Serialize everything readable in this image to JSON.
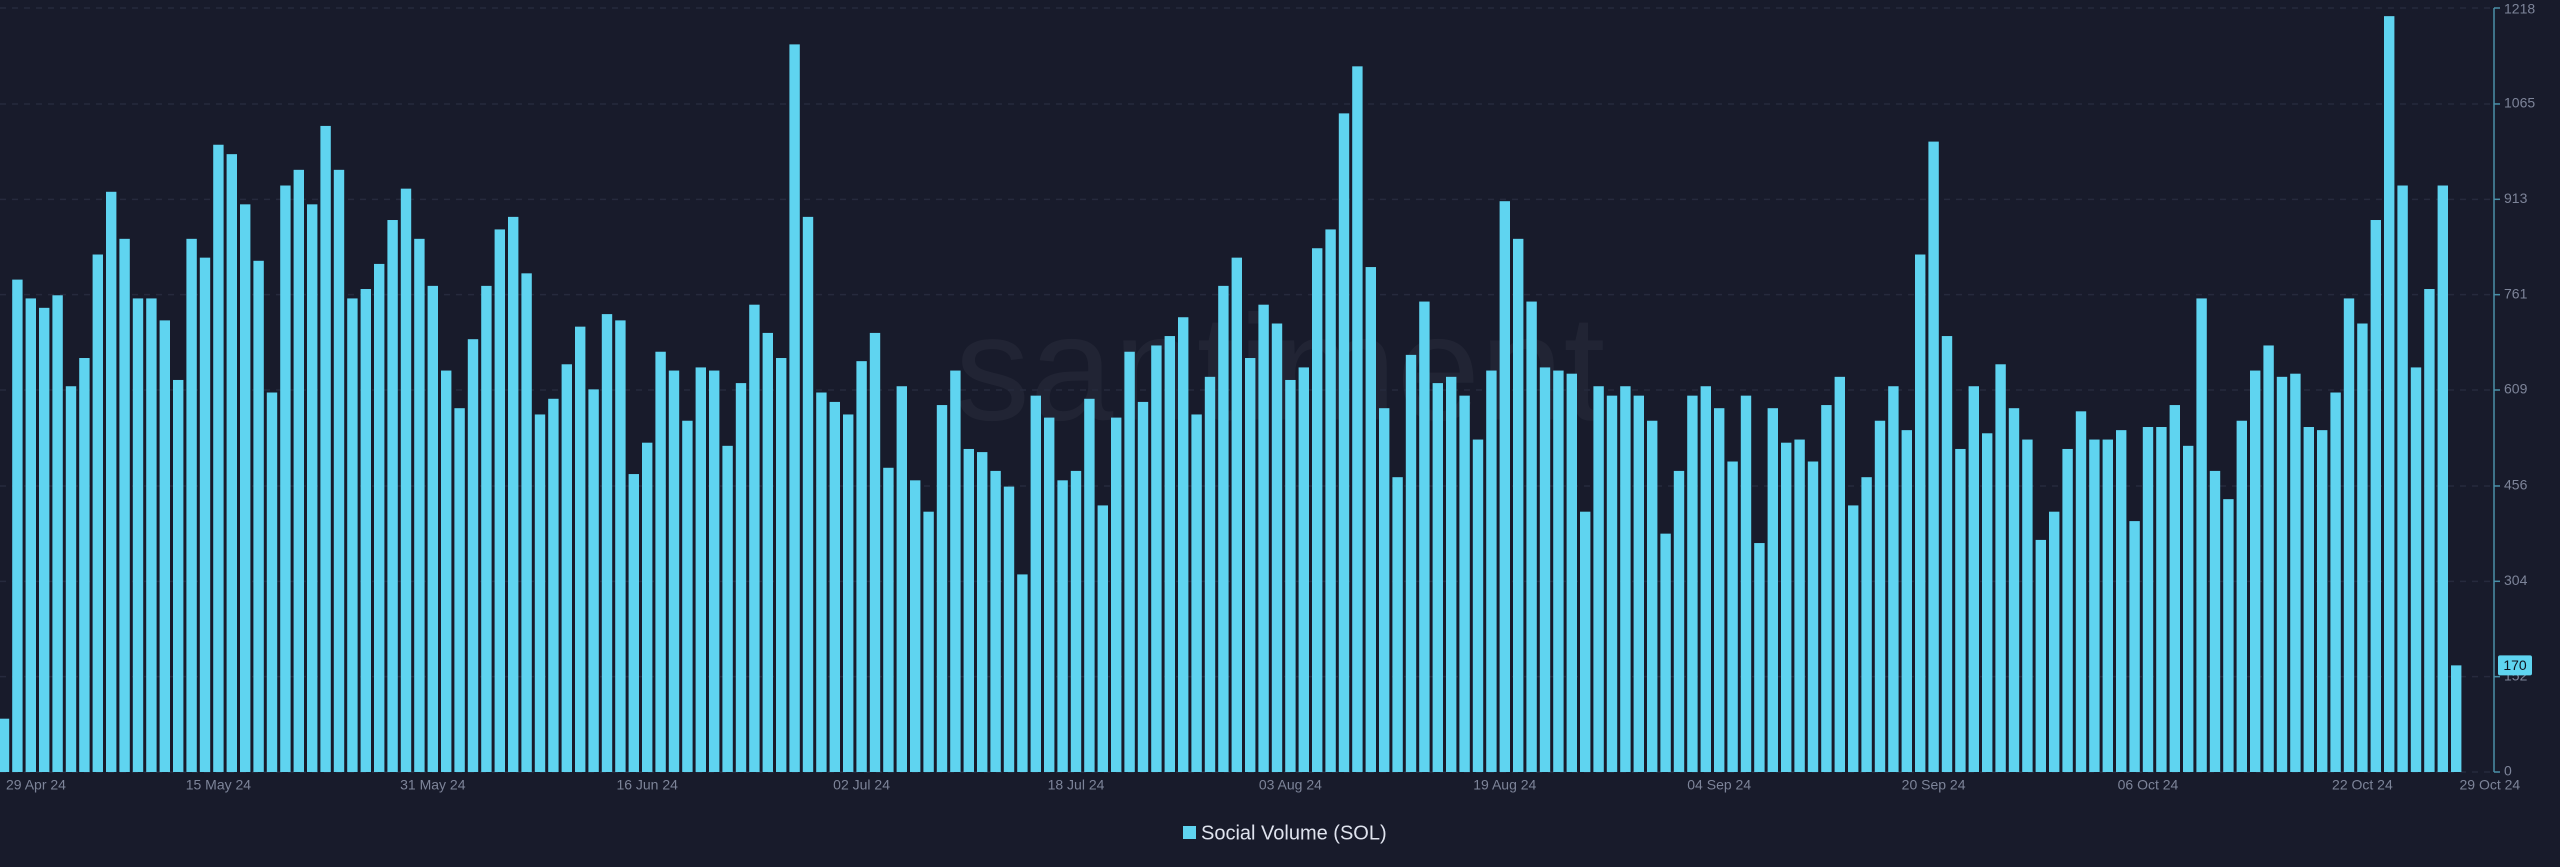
{
  "chart_data": {
    "type": "bar",
    "watermark": "santiment",
    "categories": [
      "29 Apr 24",
      null,
      null,
      null,
      null,
      null,
      null,
      null,
      null,
      null,
      null,
      null,
      null,
      null,
      null,
      null,
      "15 May 24",
      null,
      null,
      null,
      null,
      null,
      null,
      null,
      null,
      null,
      null,
      null,
      null,
      null,
      null,
      null,
      "31 May 24",
      null,
      null,
      null,
      null,
      null,
      null,
      null,
      null,
      null,
      null,
      null,
      null,
      null,
      null,
      null,
      "16 Jun 24",
      null,
      null,
      null,
      null,
      null,
      null,
      null,
      null,
      null,
      null,
      null,
      null,
      null,
      null,
      null,
      "02 Jul 24",
      null,
      null,
      null,
      null,
      null,
      null,
      null,
      null,
      null,
      null,
      null,
      null,
      null,
      null,
      null,
      "18 Jul 24",
      null,
      null,
      null,
      null,
      null,
      null,
      null,
      null,
      null,
      null,
      null,
      null,
      null,
      null,
      null,
      "03 Aug 24",
      null,
      null,
      null,
      null,
      null,
      null,
      null,
      null,
      null,
      null,
      null,
      null,
      null,
      null,
      null,
      "19 Aug 24",
      null,
      null,
      null,
      null,
      null,
      null,
      null,
      null,
      null,
      null,
      null,
      null,
      null,
      null,
      null,
      "04 Sep 24",
      null,
      null,
      null,
      null,
      null,
      null,
      null,
      null,
      null,
      null,
      null,
      null,
      null,
      null,
      null,
      "20 Sep 24",
      null,
      null,
      null,
      null,
      null,
      null,
      null,
      null,
      null,
      null,
      null,
      null,
      null,
      null,
      null,
      "06 Oct 24",
      null,
      null,
      null,
      null,
      null,
      null,
      null,
      null,
      null,
      null,
      null,
      null,
      null,
      null,
      null,
      "22 Oct 24",
      null,
      null,
      null,
      null,
      null,
      null,
      "29 Oct 24"
    ],
    "series": [
      {
        "name": "Social Volume (SOL)",
        "color": "#5fd4f0",
        "values": [
          85,
          785,
          755,
          740,
          760,
          615,
          660,
          825,
          925,
          850,
          755,
          755,
          720,
          625,
          850,
          820,
          1000,
          985,
          905,
          815,
          605,
          935,
          960,
          905,
          1030,
          960,
          755,
          770,
          810,
          880,
          930,
          850,
          775,
          640,
          580,
          690,
          775,
          865,
          885,
          795,
          570,
          595,
          650,
          710,
          610,
          730,
          720,
          475,
          525,
          670,
          640,
          560,
          645,
          640,
          520,
          620,
          745,
          700,
          660,
          1160,
          885,
          605,
          590,
          570,
          655,
          700,
          485,
          615,
          465,
          415,
          585,
          640,
          515,
          510,
          480,
          455,
          315,
          600,
          565,
          465,
          480,
          595,
          425,
          565,
          670,
          590,
          680,
          695,
          725,
          570,
          630,
          775,
          820,
          660,
          745,
          715,
          625,
          645,
          835,
          865,
          1050,
          1125,
          805,
          580,
          470,
          665,
          750,
          620,
          630,
          600,
          530,
          640,
          910,
          850,
          750,
          645,
          640,
          635,
          415,
          615,
          600,
          615,
          600,
          560,
          380,
          480,
          600,
          615,
          580,
          495,
          600,
          365,
          580,
          525,
          530,
          495,
          585,
          630,
          425,
          470,
          560,
          615,
          545,
          825,
          1005,
          695,
          515,
          615,
          540,
          650,
          580,
          530,
          370,
          415,
          515,
          575,
          530,
          530,
          545,
          400,
          550,
          550,
          585,
          520,
          755,
          480,
          435,
          560,
          640,
          680,
          630,
          635,
          550,
          545,
          605,
          755,
          715,
          880,
          1205,
          935,
          645,
          770,
          935,
          170
        ]
      }
    ],
    "ylim": [
      0,
      1218
    ],
    "yticks": [
      0,
      152,
      304,
      456,
      609,
      761,
      913,
      1065,
      1218
    ],
    "grid": true
  }
}
